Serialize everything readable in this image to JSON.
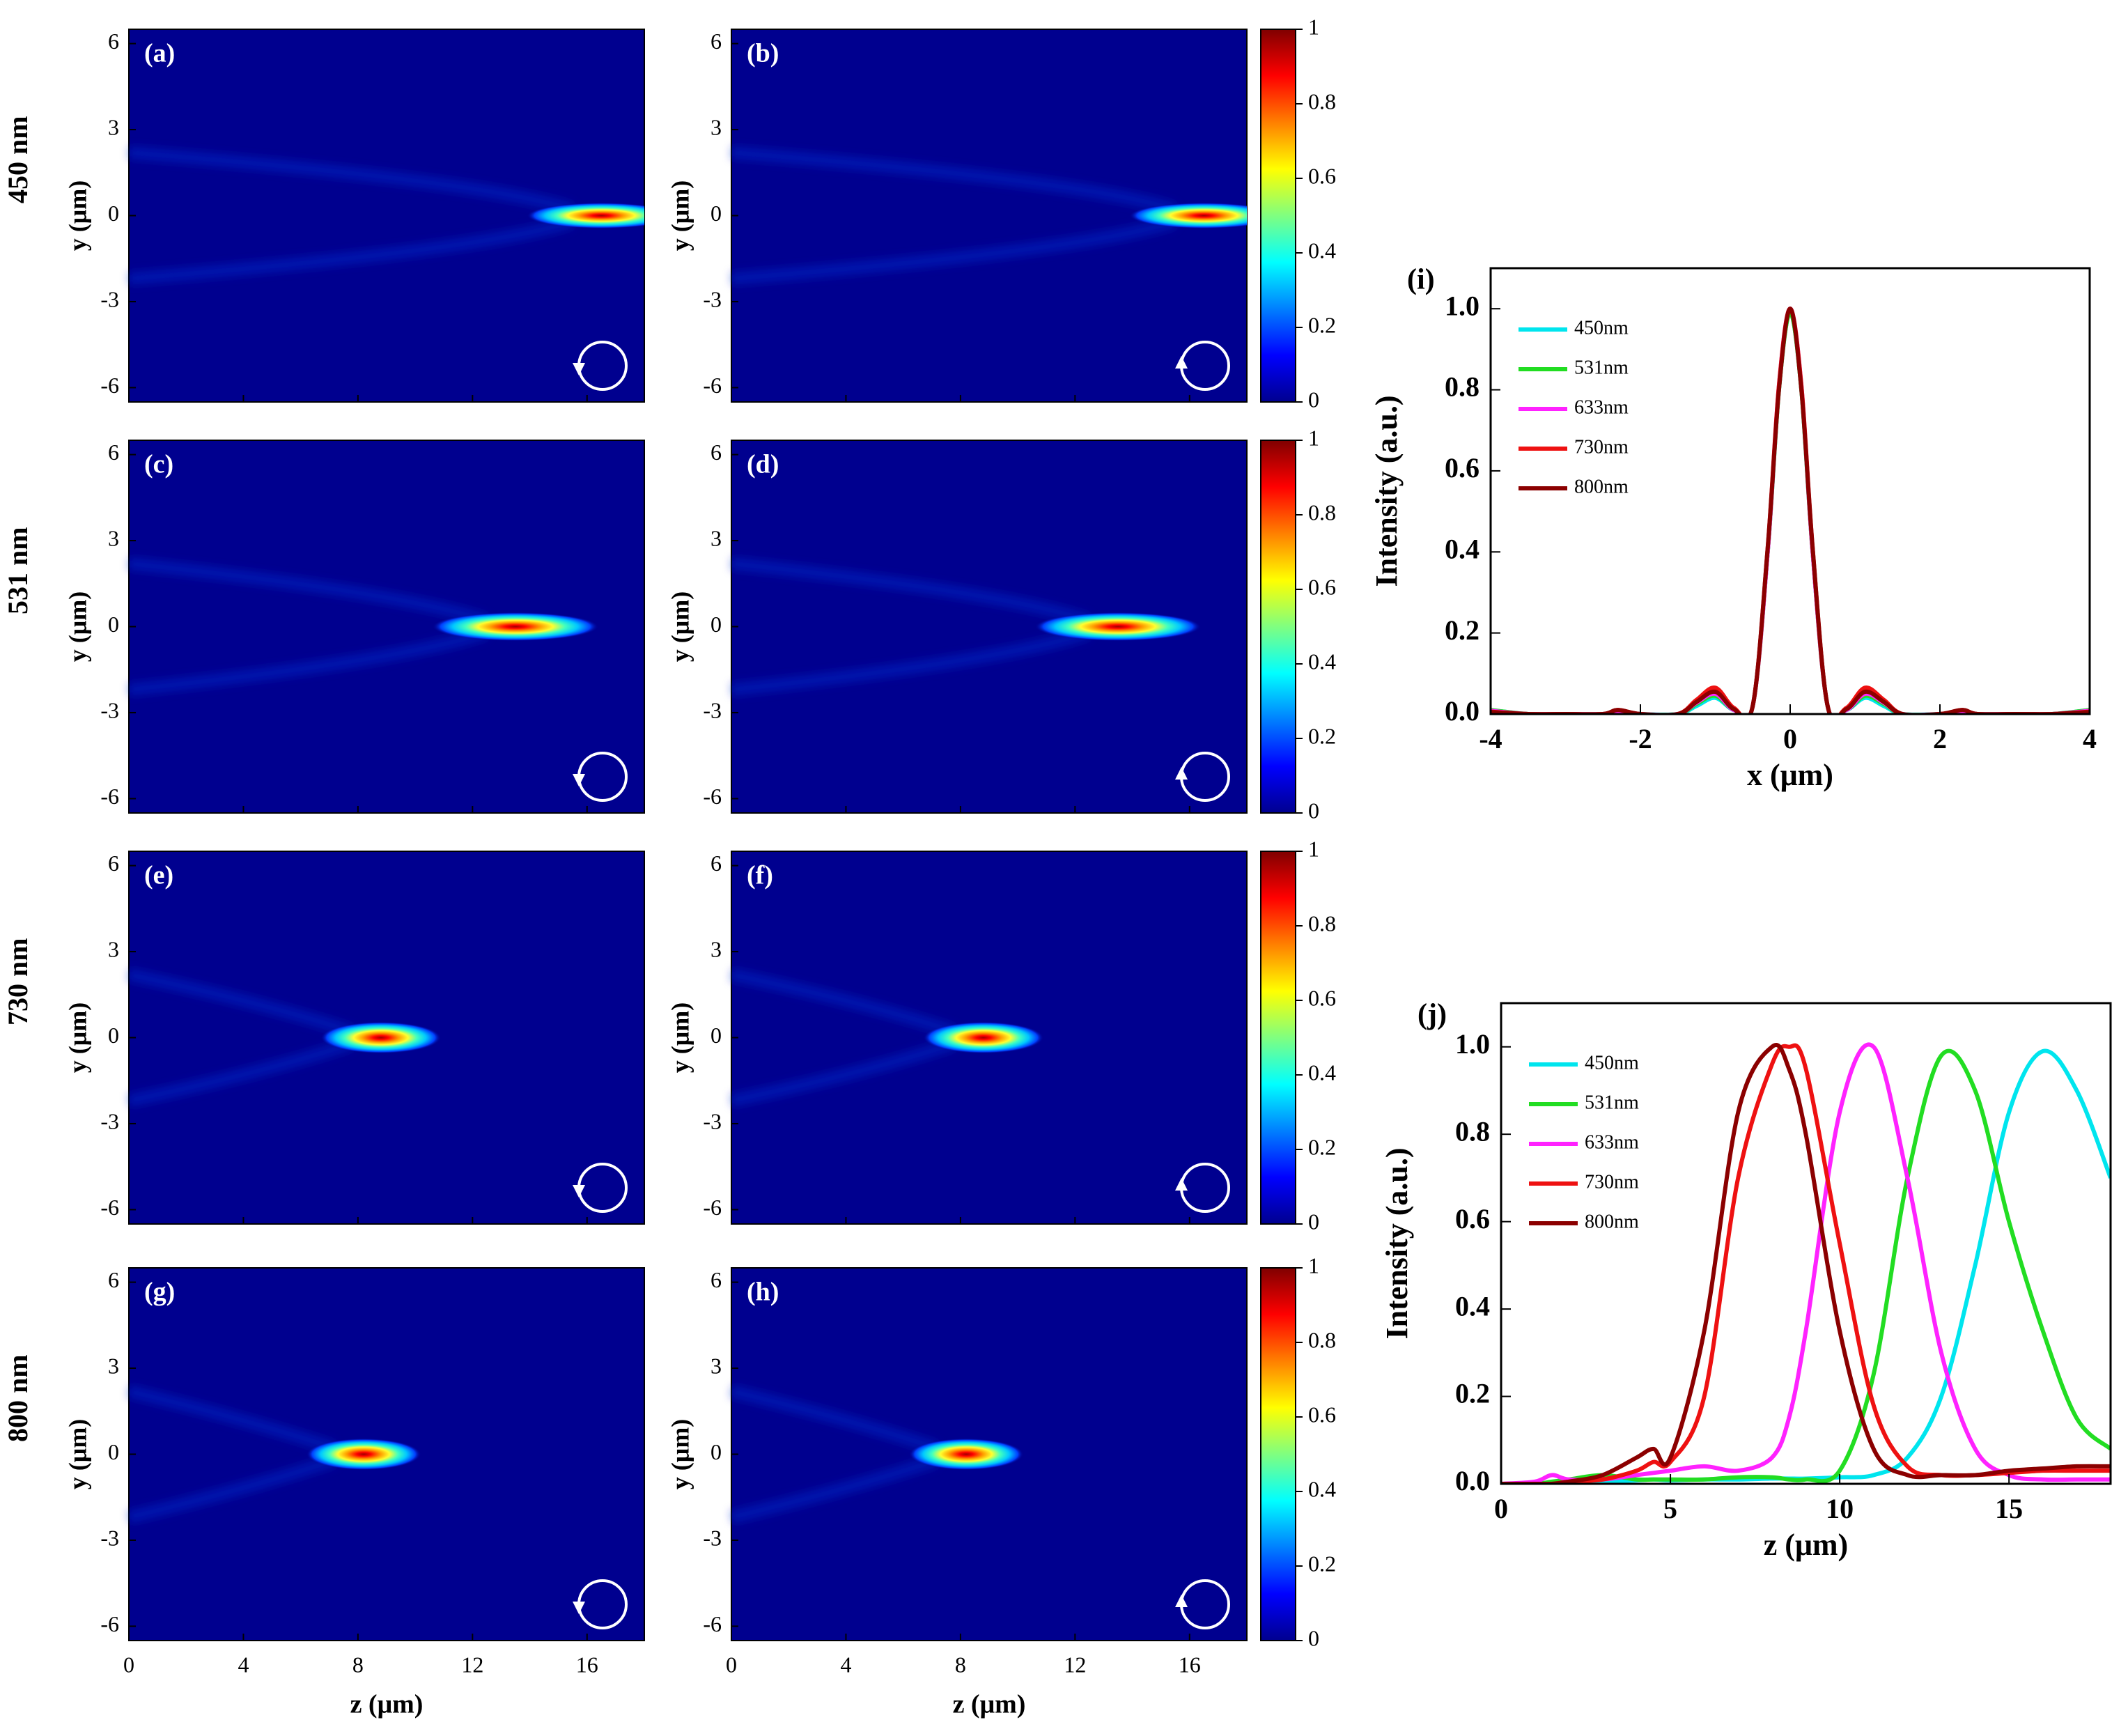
{
  "colors": {
    "map_background": "#00008f",
    "map_axis": "#000000",
    "marker": "#ffffff"
  },
  "colorbar": {
    "ticks": [
      "0",
      "0.2",
      "0.4",
      "0.6",
      "0.8",
      "1"
    ]
  },
  "map_axes": {
    "y_ticks": [
      "6",
      "3",
      "0",
      "-3",
      "-6"
    ],
    "ylabel": "y (μm)",
    "z_ticks": [
      "0",
      "4",
      "8",
      "12",
      "16"
    ],
    "xlabel": "z (μm)"
  },
  "rows": [
    {
      "wavelength_label": "450 nm",
      "panels": [
        {
          "label": "(a)",
          "rotation": "clockwise",
          "focus": {
            "z": 16.5,
            "y": 0,
            "z_halfwidth": 2.6,
            "y_halfwidth": 0.45
          }
        },
        {
          "label": "(b)",
          "rotation": "counterclockwise",
          "focus": {
            "z": 16.5,
            "y": 0,
            "z_halfwidth": 2.6,
            "y_halfwidth": 0.45
          }
        }
      ]
    },
    {
      "wavelength_label": "531 nm",
      "panels": [
        {
          "label": "(c)",
          "rotation": "clockwise",
          "focus": {
            "z": 13.5,
            "y": 0,
            "z_halfwidth": 2.9,
            "y_halfwidth": 0.5
          }
        },
        {
          "label": "(d)",
          "rotation": "counterclockwise",
          "focus": {
            "z": 13.5,
            "y": 0,
            "z_halfwidth": 2.9,
            "y_halfwidth": 0.5
          }
        }
      ]
    },
    {
      "wavelength_label": "730 nm",
      "panels": [
        {
          "label": "(e)",
          "rotation": "clockwise",
          "focus": {
            "z": 8.8,
            "y": 0,
            "z_halfwidth": 2.1,
            "y_halfwidth": 0.55
          }
        },
        {
          "label": "(f)",
          "rotation": "counterclockwise",
          "focus": {
            "z": 8.8,
            "y": 0,
            "z_halfwidth": 2.1,
            "y_halfwidth": 0.55
          }
        }
      ]
    },
    {
      "wavelength_label": "800 nm",
      "panels": [
        {
          "label": "(g)",
          "rotation": "clockwise",
          "focus": {
            "z": 8.2,
            "y": 0,
            "z_halfwidth": 2.0,
            "y_halfwidth": 0.55
          }
        },
        {
          "label": "(h)",
          "rotation": "counterclockwise",
          "focus": {
            "z": 8.2,
            "y": 0,
            "z_halfwidth": 2.0,
            "y_halfwidth": 0.55
          }
        }
      ]
    }
  ],
  "chart_data": [
    {
      "type": "heatmap",
      "panels": [
        "(a)",
        "(b)",
        "(c)",
        "(d)",
        "(e)",
        "(f)",
        "(g)",
        "(h)"
      ],
      "row_labels": [
        "450 nm",
        "531 nm",
        "730 nm",
        "800 nm"
      ],
      "xlabel": "z (μm)",
      "ylabel": "y (μm)",
      "xlim": [
        0,
        18
      ],
      "ylim": [
        -6.5,
        6.5
      ],
      "x_ticks": [
        0,
        4,
        8,
        12,
        16
      ],
      "y_ticks": [
        -6,
        -3,
        0,
        3,
        6
      ],
      "colorbar_range": [
        0,
        1
      ],
      "colorbar_ticks": [
        0,
        0.2,
        0.4,
        0.6,
        0.8,
        1
      ],
      "colormap": "jet",
      "focal_positions_z": {
        "450 nm": 16.5,
        "531 nm": 13.5,
        "730 nm": 8.8,
        "800 nm": 8.2
      }
    },
    {
      "type": "line",
      "label": "(i)",
      "xlabel": "x (μm)",
      "ylabel": "Intensity (a.u.)",
      "xlim": [
        -4,
        4
      ],
      "ylim": [
        0,
        1.1
      ],
      "x_ticks": [
        -4,
        -2,
        0,
        2,
        4
      ],
      "y_ticks": [
        0.0,
        0.2,
        0.4,
        0.6,
        0.8,
        1.0
      ],
      "legend": "top-left",
      "grid": false,
      "x": [
        -4,
        -3.5,
        -3,
        -2.5,
        -2.3,
        -2,
        -1.5,
        -1.25,
        -1,
        -0.75,
        -0.5,
        -0.3,
        -0.15,
        0,
        0.15,
        0.3,
        0.5,
        0.75,
        1,
        1.25,
        1.5,
        2,
        2.3,
        2.5,
        3,
        3.5,
        4
      ],
      "series": [
        {
          "name": "450nm",
          "color": "#00e5ee",
          "values": [
            0.01,
            0.0,
            0.0,
            0.0,
            0.005,
            0.0,
            0.0,
            0.02,
            0.04,
            0.01,
            0.02,
            0.4,
            0.8,
            0.99,
            0.8,
            0.4,
            0.02,
            0.01,
            0.04,
            0.02,
            0.0,
            0.0,
            0.005,
            0.0,
            0.0,
            0.0,
            0.01
          ]
        },
        {
          "name": "531nm",
          "color": "#22dd22",
          "values": [
            0.01,
            0.0,
            0.0,
            0.0,
            0.006,
            0.0,
            0.0,
            0.025,
            0.045,
            0.01,
            0.02,
            0.4,
            0.8,
            0.99,
            0.8,
            0.4,
            0.02,
            0.01,
            0.045,
            0.025,
            0.0,
            0.0,
            0.006,
            0.0,
            0.0,
            0.0,
            0.01
          ]
        },
        {
          "name": "633nm",
          "color": "#ff22ff",
          "values": [
            0.008,
            0.0,
            0.0,
            0.0,
            0.007,
            0.0,
            0.0,
            0.028,
            0.05,
            0.01,
            0.02,
            0.4,
            0.81,
            1.0,
            0.81,
            0.4,
            0.02,
            0.01,
            0.05,
            0.028,
            0.0,
            0.0,
            0.007,
            0.0,
            0.0,
            0.0,
            0.008
          ]
        },
        {
          "name": "730nm",
          "color": "#ee1111",
          "values": [
            0.006,
            0.0,
            0.0,
            0.0,
            0.01,
            0.0,
            0.0,
            0.035,
            0.065,
            0.015,
            0.02,
            0.41,
            0.81,
            1.0,
            0.81,
            0.41,
            0.02,
            0.015,
            0.065,
            0.035,
            0.0,
            0.0,
            0.01,
            0.0,
            0.0,
            0.0,
            0.006
          ]
        },
        {
          "name": "800nm",
          "color": "#8b0000",
          "values": [
            0.005,
            0.0,
            0.0,
            0.0,
            0.01,
            0.0,
            0.0,
            0.03,
            0.055,
            0.012,
            0.02,
            0.41,
            0.8,
            1.0,
            0.8,
            0.41,
            0.02,
            0.012,
            0.055,
            0.03,
            0.0,
            0.0,
            0.01,
            0.0,
            0.0,
            0.0,
            0.005
          ]
        }
      ]
    },
    {
      "type": "line",
      "label": "(j)",
      "xlabel": "z (μm)",
      "ylabel": "Intensity (a.u.)",
      "xlim": [
        0,
        18
      ],
      "ylim": [
        0,
        1.1
      ],
      "x_ticks": [
        0,
        5,
        10,
        15
      ],
      "y_ticks": [
        0.0,
        0.2,
        0.4,
        0.6,
        0.8,
        1.0
      ],
      "legend": "top-left",
      "grid": false,
      "x": [
        0,
        1,
        1.5,
        2,
        3,
        4,
        4.5,
        5,
        6,
        7,
        8,
        8.5,
        9,
        10,
        11,
        12,
        13,
        14,
        15,
        16,
        17,
        18
      ],
      "series": [
        {
          "name": "450nm",
          "color": "#00e5ee",
          "values": [
            0.0,
            0.0,
            0.0,
            0.005,
            0.005,
            0.008,
            0.01,
            0.008,
            0.01,
            0.01,
            0.012,
            0.012,
            0.012,
            0.015,
            0.02,
            0.06,
            0.2,
            0.5,
            0.85,
            0.99,
            0.9,
            0.7
          ]
        },
        {
          "name": "531nm",
          "color": "#22dd22",
          "values": [
            0.0,
            0.0,
            0.005,
            0.01,
            0.02,
            0.01,
            0.01,
            0.01,
            0.01,
            0.015,
            0.015,
            0.01,
            0.01,
            0.03,
            0.25,
            0.7,
            0.98,
            0.9,
            0.6,
            0.35,
            0.15,
            0.08
          ]
        },
        {
          "name": "633nm",
          "color": "#ff22ff",
          "values": [
            0.0,
            0.005,
            0.02,
            0.01,
            0.01,
            0.02,
            0.025,
            0.03,
            0.04,
            0.03,
            0.06,
            0.15,
            0.35,
            0.85,
            1.0,
            0.7,
            0.3,
            0.08,
            0.02,
            0.01,
            0.01,
            0.01
          ]
        },
        {
          "name": "730nm",
          "color": "#ee1111",
          "values": [
            0.0,
            0.0,
            0.0,
            0.005,
            0.01,
            0.03,
            0.05,
            0.05,
            0.2,
            0.7,
            0.96,
            1.0,
            0.95,
            0.55,
            0.18,
            0.04,
            0.02,
            0.02,
            0.025,
            0.03,
            0.03,
            0.03
          ]
        },
        {
          "name": "800nm",
          "color": "#8b0000",
          "values": [
            0.0,
            0.0,
            0.0,
            0.005,
            0.02,
            0.06,
            0.08,
            0.06,
            0.35,
            0.85,
            1.0,
            0.95,
            0.8,
            0.35,
            0.08,
            0.02,
            0.02,
            0.02,
            0.03,
            0.035,
            0.04,
            0.04
          ]
        }
      ]
    }
  ]
}
